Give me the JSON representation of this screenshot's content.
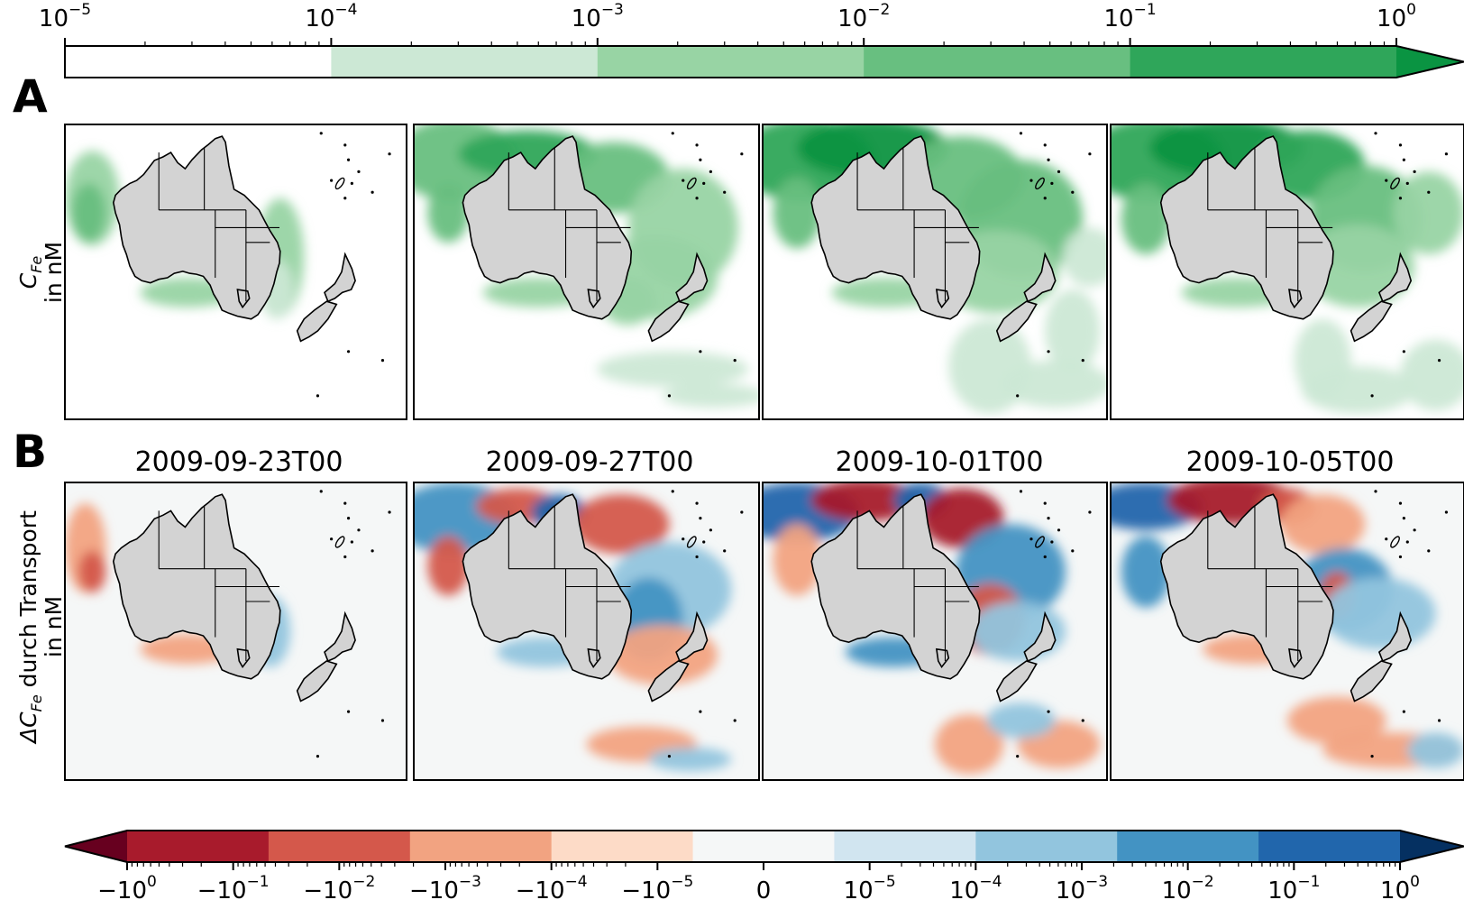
{
  "figure": {
    "panel_a_letter": "A",
    "panel_b_letter": "B",
    "row_a_ylabel": {
      "line1_symbol": "C",
      "line1_sub": "Fe",
      "line2": "in nM"
    },
    "row_b_ylabel": {
      "line1_prefix": "ΔC",
      "line1_sub": "Fe",
      "line1_suffix": " durch Transport",
      "line2": "in nM"
    },
    "dates": [
      "2009-09-23T00",
      "2009-09-27T00",
      "2009-10-01T00",
      "2009-10-05T00"
    ]
  },
  "chart_data": [
    {
      "type": "colorbar",
      "orientation": "horizontal",
      "scale": "log",
      "extend": "max",
      "tick_labels": [
        {
          "base": "10",
          "exp": "−5"
        },
        {
          "base": "10",
          "exp": "−4"
        },
        {
          "base": "10",
          "exp": "−3"
        },
        {
          "base": "10",
          "exp": "−2"
        },
        {
          "base": "10",
          "exp": "−1"
        },
        {
          "base": "10",
          "exp": "0"
        }
      ],
      "levels": [
        1e-05,
        0.0001,
        0.001,
        0.01,
        0.1,
        1
      ],
      "colors": [
        "#ffffff",
        "#cce8d5",
        "#98d4a4",
        "#68bf80",
        "#2fa65a",
        "#0a9442"
      ]
    },
    {
      "type": "heatmap",
      "title": "",
      "row": "A",
      "quantity": "C_Fe in nM",
      "panels": [
        "2009-09-23T00",
        "2009-09-27T00",
        "2009-10-01T00",
        "2009-10-05T00"
      ],
      "palette": "greens"
    },
    {
      "type": "heatmap",
      "title": "",
      "row": "B",
      "quantity": "ΔC_Fe durch Transport in nM",
      "panels": [
        "2009-09-23T00",
        "2009-09-27T00",
        "2009-10-01T00",
        "2009-10-05T00"
      ],
      "palette": "diverging red-blue"
    },
    {
      "type": "colorbar",
      "orientation": "horizontal",
      "scale": "symlog",
      "extend": "both",
      "tick_labels": [
        {
          "base": "−10",
          "exp": "0"
        },
        {
          "base": "−10",
          "exp": "−1"
        },
        {
          "base": "−10",
          "exp": "−2"
        },
        {
          "base": "−10",
          "exp": "−3"
        },
        {
          "base": "−10",
          "exp": "−4"
        },
        {
          "base": "−10",
          "exp": "−5"
        },
        {
          "base": "0",
          "exp": ""
        },
        {
          "base": "10",
          "exp": "−5"
        },
        {
          "base": "10",
          "exp": "−4"
        },
        {
          "base": "10",
          "exp": "−3"
        },
        {
          "base": "10",
          "exp": "−2"
        },
        {
          "base": "10",
          "exp": "−1"
        },
        {
          "base": "10",
          "exp": "0"
        }
      ],
      "levels": [
        -1,
        -0.1,
        -0.01,
        -0.001,
        -0.0001,
        -1e-05,
        0,
        1e-05,
        0.0001,
        0.001,
        0.01,
        0.1,
        1
      ],
      "colors": [
        "#a81b2c",
        "#d4584b",
        "#f2a381",
        "#fddbc7",
        "#f5f7f7",
        "#d1e5f0",
        "#92c5de",
        "#4393c3",
        "#2166ac"
      ],
      "extend_colors": {
        "min": "#67001f",
        "max": "#053061"
      }
    }
  ]
}
